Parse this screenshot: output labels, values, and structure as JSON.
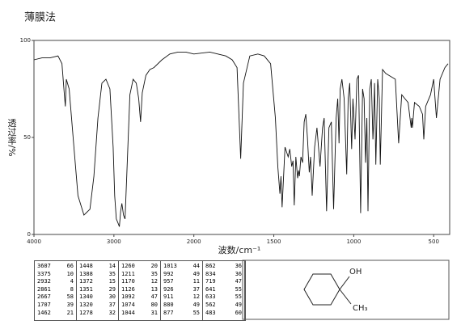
{
  "chart_data": {
    "type": "line",
    "title": "薄膜法",
    "x_label": "波数/cm⁻¹",
    "y_label": "透过率/%",
    "color": "#111",
    "x": [
      4000,
      3900,
      3800,
      3700,
      3650,
      3620,
      3607,
      3595,
      3560,
      3500,
      3450,
      3375,
      3300,
      3250,
      3200,
      3150,
      3100,
      3050,
      3010,
      2990,
      2970,
      2950,
      2932,
      2915,
      2900,
      2880,
      2861,
      2840,
      2800,
      2760,
      2720,
      2690,
      2667,
      2645,
      2600,
      2550,
      2500,
      2400,
      2300,
      2200,
      2100,
      2000,
      1900,
      1850,
      1800,
      1760,
      1730,
      1707,
      1690,
      1650,
      1600,
      1560,
      1520,
      1490,
      1475,
      1462,
      1455,
      1448,
      1430,
      1410,
      1400,
      1388,
      1380,
      1372,
      1362,
      1351,
      1345,
      1340,
      1330,
      1320,
      1310,
      1300,
      1290,
      1278,
      1270,
      1260,
      1245,
      1230,
      1211,
      1195,
      1185,
      1170,
      1155,
      1140,
      1126,
      1110,
      1100,
      1092,
      1085,
      1074,
      1060,
      1044,
      1035,
      1025,
      1013,
      1005,
      992,
      980,
      970,
      957,
      945,
      935,
      926,
      918,
      911,
      900,
      890,
      880,
      877,
      870,
      862,
      850,
      840,
      834,
      820,
      800,
      780,
      740,
      719,
      700,
      680,
      660,
      641,
      637,
      633,
      620,
      590,
      570,
      562,
      550,
      520,
      500,
      483,
      460,
      430,
      410
    ],
    "values": [
      90,
      91,
      91,
      92,
      88,
      72,
      66,
      80,
      75,
      45,
      20,
      10,
      13,
      30,
      60,
      78,
      80,
      75,
      45,
      20,
      8,
      6,
      4,
      12,
      16,
      10,
      8,
      30,
      72,
      80,
      78,
      70,
      58,
      73,
      82,
      85,
      86,
      90,
      93,
      94,
      94,
      93,
      94,
      93,
      92,
      90,
      86,
      39,
      78,
      92,
      93,
      92,
      88,
      60,
      35,
      21,
      30,
      14,
      45,
      40,
      44,
      35,
      38,
      15,
      40,
      29,
      33,
      30,
      40,
      37,
      58,
      62,
      50,
      32,
      40,
      20,
      45,
      55,
      35,
      55,
      60,
      12,
      55,
      58,
      13,
      60,
      70,
      47,
      75,
      80,
      70,
      31,
      70,
      78,
      44,
      70,
      49,
      80,
      82,
      11,
      75,
      70,
      37,
      60,
      12,
      75,
      80,
      49,
      55,
      78,
      36,
      80,
      70,
      36,
      85,
      83,
      82,
      80,
      47,
      72,
      70,
      68,
      55,
      60,
      55,
      68,
      66,
      62,
      49,
      66,
      72,
      80,
      60,
      80,
      86,
      88
    ],
    "xlim": [
      4000,
      400
    ],
    "xticks": [
      4000,
      3000,
      2000,
      1500,
      1000,
      500
    ],
    "ylim": [
      0,
      100
    ],
    "yticks": [
      0,
      50,
      100
    ]
  },
  "peak_table": {
    "columns": [
      [
        [
          3607,
          66
        ],
        [
          3375,
          10
        ],
        [
          2932,
          4
        ],
        [
          2861,
          8
        ],
        [
          2667,
          58
        ],
        [
          1707,
          39
        ],
        [
          1462,
          21
        ]
      ],
      [
        [
          1448,
          14
        ],
        [
          1388,
          35
        ],
        [
          1372,
          15
        ],
        [
          1351,
          29
        ],
        [
          1340,
          30
        ],
        [
          1320,
          37
        ],
        [
          1278,
          32
        ]
      ],
      [
        [
          1260,
          20
        ],
        [
          1211,
          35
        ],
        [
          1170,
          12
        ],
        [
          1126,
          13
        ],
        [
          1092,
          47
        ],
        [
          1074,
          80
        ],
        [
          1044,
          31
        ]
      ],
      [
        [
          1013,
          44
        ],
        [
          992,
          49
        ],
        [
          957,
          11
        ],
        [
          926,
          37
        ],
        [
          911,
          12
        ],
        [
          880,
          49
        ],
        [
          877,
          55
        ]
      ],
      [
        [
          862,
          36
        ],
        [
          834,
          36
        ],
        [
          719,
          47
        ],
        [
          641,
          55
        ],
        [
          633,
          55
        ],
        [
          562,
          49
        ],
        [
          483,
          60
        ]
      ]
    ]
  },
  "structure": {
    "top_label": "OH",
    "bottom_label": "CH₃"
  }
}
